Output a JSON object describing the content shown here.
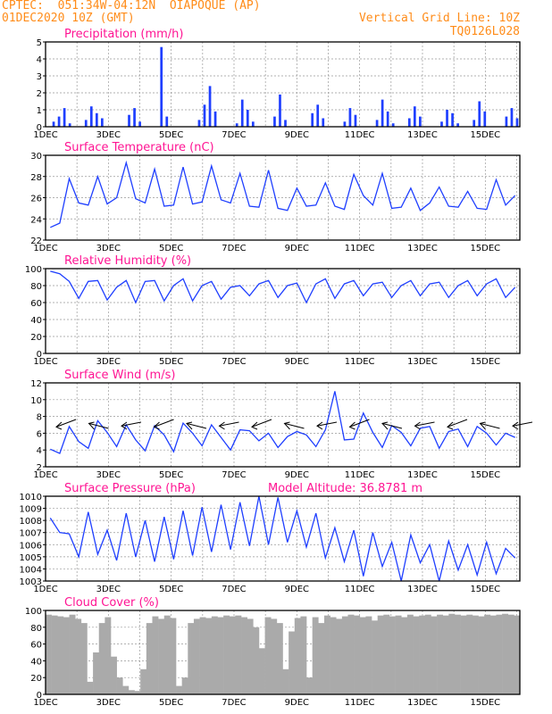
{
  "header": {
    "left_line1": "CPTEC:  051:34W-04:12N  OIAPOQUE (AP)",
    "left_line2": "01DEC2020 10Z (GMT)",
    "right_line1": "Vertical Grid Line: 10Z",
    "right_line2": "TQ0126L028"
  },
  "colors": {
    "header": "#ff8c19",
    "title": "#ff1493",
    "line": "#1f3fff",
    "cloud": "#aaaaaa"
  },
  "chart_data": [
    {
      "type": "bar",
      "title": "Precipitation (mm/h)",
      "x_labels": [
        "1DEC",
        "3DEC",
        "5DEC",
        "7DEC",
        "9DEC",
        "11DEC",
        "13DEC",
        "15DEC"
      ],
      "ylim": [
        0,
        5
      ],
      "yticks": [
        0,
        1,
        2,
        3,
        4,
        5
      ],
      "series": [
        {
          "values": [
            0,
            0.3,
            0.6,
            1.1,
            0.2,
            0,
            0,
            0.4,
            1.2,
            0.8,
            0.5,
            0,
            0,
            0,
            0,
            0.7,
            1.1,
            0.3,
            0,
            0,
            0,
            4.7,
            0.6,
            0,
            0,
            0,
            0,
            0,
            0.4,
            1.3,
            2.4,
            0.9,
            0,
            0,
            0,
            0.2,
            1.6,
            1.0,
            0.3,
            0,
            0,
            0,
            0.6,
            1.9,
            0.4,
            0,
            0,
            0,
            0,
            0.8,
            1.3,
            0.5,
            0,
            0,
            0,
            0.3,
            1.1,
            0.7,
            0,
            0,
            0,
            0.4,
            1.6,
            0.9,
            0.2,
            0,
            0,
            0.5,
            1.2,
            0.6,
            0,
            0,
            0,
            0.3,
            1.0,
            0.8,
            0.2,
            0,
            0,
            0.4,
            1.5,
            0.9,
            0,
            0,
            0,
            0.6,
            1.1,
            0.5
          ]
        }
      ]
    },
    {
      "type": "line",
      "title": "Surface Temperature (nC)",
      "x_labels": [
        "1DEC",
        "3DEC",
        "5DEC",
        "7DEC",
        "9DEC",
        "11DEC",
        "13DEC",
        "15DEC"
      ],
      "ylim": [
        22,
        30
      ],
      "yticks": [
        22,
        24,
        26,
        28,
        30
      ],
      "series": [
        {
          "values": [
            23.2,
            23.6,
            27.8,
            25.5,
            25.3,
            28.0,
            25.4,
            26.0,
            29.3,
            25.9,
            25.5,
            28.7,
            25.2,
            25.3,
            28.9,
            25.4,
            25.6,
            29.0,
            25.8,
            25.5,
            28.3,
            25.2,
            25.1,
            28.6,
            25.0,
            24.8,
            26.9,
            25.2,
            25.3,
            27.4,
            25.2,
            24.9,
            28.2,
            26.2,
            25.3,
            28.3,
            25.0,
            25.1,
            26.9,
            24.8,
            25.5,
            27.0,
            25.2,
            25.1,
            26.6,
            25.0,
            24.9,
            27.7,
            25.3,
            26.2
          ]
        }
      ]
    },
    {
      "type": "line",
      "title": "Relative Humidity (%)",
      "x_labels": [
        "1DEC",
        "3DEC",
        "5DEC",
        "7DEC",
        "9DEC",
        "11DEC",
        "13DEC",
        "15DEC"
      ],
      "ylim": [
        0,
        100
      ],
      "yticks": [
        0,
        20,
        40,
        60,
        80,
        100
      ],
      "series": [
        {
          "values": [
            97,
            94,
            85,
            65,
            85,
            86,
            63,
            78,
            86,
            60,
            85,
            86,
            62,
            80,
            88,
            62,
            80,
            85,
            64,
            78,
            80,
            68,
            82,
            86,
            66,
            80,
            83,
            60,
            82,
            88,
            65,
            82,
            86,
            68,
            82,
            84,
            66,
            80,
            86,
            68,
            82,
            84,
            66,
            80,
            86,
            68,
            82,
            88,
            66,
            78
          ]
        }
      ]
    },
    {
      "type": "line",
      "title": "Surface Wind (m/s)",
      "x_labels": [
        "1DEC",
        "3DEC",
        "5DEC",
        "7DEC",
        "9DEC",
        "11DEC",
        "13DEC",
        "15DEC"
      ],
      "ylim": [
        2,
        12
      ],
      "yticks": [
        2,
        4,
        6,
        8,
        10,
        12
      ],
      "series": [
        {
          "values": [
            4.1,
            3.6,
            6.8,
            5.0,
            4.2,
            7.5,
            6.1,
            4.4,
            7.0,
            5.2,
            3.9,
            6.9,
            5.8,
            3.8,
            7.2,
            6.0,
            4.5,
            7.0,
            5.5,
            4.0,
            6.4,
            6.3,
            5.1,
            6.0,
            4.3,
            5.6,
            6.2,
            5.8,
            4.4,
            6.4,
            11.0,
            5.2,
            5.3,
            8.4,
            6.1,
            4.3,
            6.9,
            6.1,
            4.5,
            6.6,
            6.8,
            4.2,
            6.2,
            6.5,
            4.4,
            6.8,
            6.0,
            4.6,
            6.0,
            5.5
          ]
        }
      ]
    },
    {
      "type": "line",
      "title": "Surface Pressure (hPa)",
      "annotation": "Model Altitude: 36.8781 m",
      "x_labels": [
        "1DEC",
        "3DEC",
        "5DEC",
        "7DEC",
        "9DEC",
        "11DEC",
        "13DEC",
        "15DEC"
      ],
      "ylim": [
        1003,
        1010
      ],
      "yticks": [
        1003,
        1004,
        1005,
        1006,
        1007,
        1008,
        1009,
        1010
      ],
      "series": [
        {
          "values": [
            1008.2,
            1007.0,
            1006.9,
            1005.0,
            1008.7,
            1005.2,
            1007.2,
            1004.7,
            1008.6,
            1005.0,
            1008.0,
            1004.6,
            1008.3,
            1004.8,
            1008.8,
            1005.1,
            1009.1,
            1005.4,
            1009.3,
            1005.6,
            1009.5,
            1005.9,
            1010.0,
            1006.0,
            1009.9,
            1006.2,
            1008.8,
            1005.8,
            1008.6,
            1004.9,
            1007.4,
            1004.6,
            1007.2,
            1003.4,
            1007.0,
            1004.2,
            1006.2,
            1003.0,
            1006.8,
            1004.5,
            1006.0,
            1003.0,
            1006.3,
            1003.9,
            1006.0,
            1003.5,
            1006.2,
            1003.6,
            1005.7,
            1004.9
          ]
        }
      ]
    },
    {
      "type": "area",
      "title": "Cloud Cover (%)",
      "x_labels": [
        "1DEC",
        "3DEC",
        "5DEC",
        "7DEC",
        "9DEC",
        "11DEC",
        "13DEC",
        "15DEC"
      ],
      "ylim": [
        0,
        100
      ],
      "yticks": [
        0,
        20,
        40,
        60,
        80,
        100
      ],
      "series": [
        {
          "values": [
            95,
            94,
            93,
            92,
            95,
            90,
            85,
            15,
            50,
            85,
            92,
            45,
            20,
            10,
            5,
            4,
            30,
            85,
            93,
            90,
            94,
            91,
            10,
            20,
            85,
            90,
            92,
            91,
            93,
            92,
            94,
            93,
            94,
            92,
            90,
            80,
            55,
            92,
            90,
            85,
            30,
            75,
            91,
            93,
            20,
            92,
            85,
            94,
            92,
            90,
            93,
            95,
            94,
            92,
            93,
            88,
            94,
            95,
            93,
            94,
            92,
            95,
            93,
            94,
            95,
            93,
            95,
            94,
            96,
            95,
            94,
            95,
            94,
            93,
            95,
            94,
            95,
            96,
            95,
            94
          ]
        }
      ]
    }
  ]
}
